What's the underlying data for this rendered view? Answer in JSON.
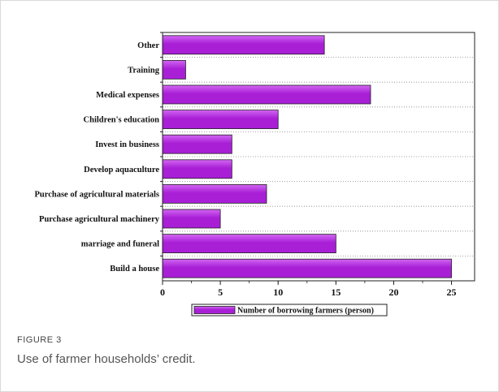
{
  "figure": {
    "label": "FIGURE 3",
    "caption": "Use of farmer households’ credit."
  },
  "colors": {
    "bar_fill": "#a81fd6",
    "bar_highlight": "#d266f2",
    "bar_stroke": "#222222"
  },
  "chart_data": {
    "type": "bar",
    "orientation": "horizontal",
    "categories": [
      "Other",
      "Training",
      "Medical expenses",
      "Children's education",
      "Invest in business",
      "Develop aquaculture",
      "Purchase of agricultural materials",
      "Purchase agricultural machinery",
      "marriage and funeral",
      "Build a house"
    ],
    "values": [
      14,
      2,
      18,
      10,
      6,
      6,
      9,
      5,
      15,
      25
    ],
    "xlim": [
      0,
      27
    ],
    "xticks": [
      0,
      5,
      10,
      15,
      20,
      25
    ],
    "grid": true,
    "legend": {
      "position": "bottom-center",
      "entries": [
        "Number of borrowing farmers (person)"
      ]
    },
    "title": "",
    "xlabel": "",
    "ylabel": ""
  }
}
